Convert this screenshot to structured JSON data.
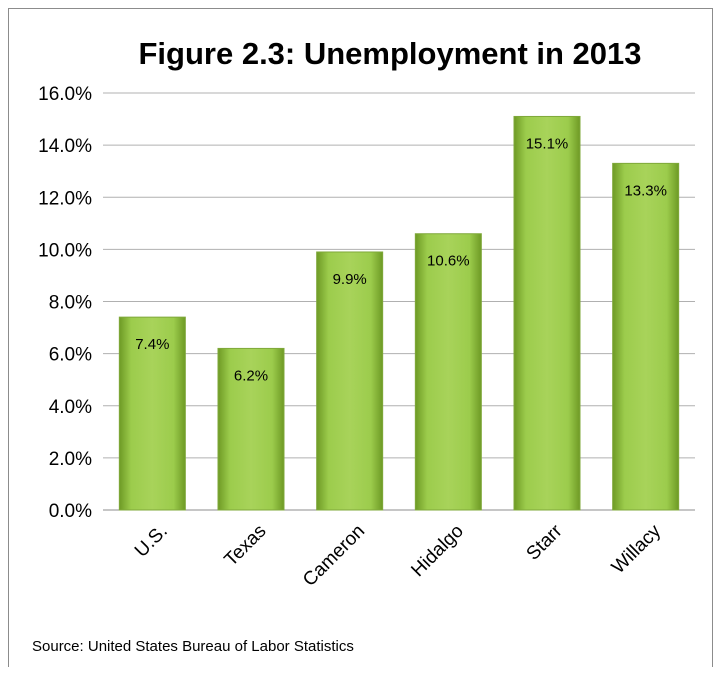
{
  "chart_data": {
    "type": "bar",
    "title": "Figure 2.3:  Unemployment in 2013",
    "categories": [
      "U.S.",
      "Texas",
      "Cameron",
      "Hidalgo",
      "Starr",
      "Willacy"
    ],
    "values": [
      7.4,
      6.2,
      9.9,
      10.6,
      15.1,
      13.3
    ],
    "data_labels": [
      "7.4%",
      "6.2%",
      "9.9%",
      "10.6%",
      "15.1%",
      "13.3%"
    ],
    "yticks": [
      "0.0%",
      "2.0%",
      "4.0%",
      "6.0%",
      "8.0%",
      "10.0%",
      "12.0%",
      "14.0%",
      "16.0%"
    ],
    "ylim": [
      0,
      16
    ],
    "grid": true,
    "legend": "none",
    "bar_color": "#8fbc3f",
    "xlabel": "",
    "ylabel": ""
  },
  "source": "Source: United States Bureau of Labor Statistics"
}
